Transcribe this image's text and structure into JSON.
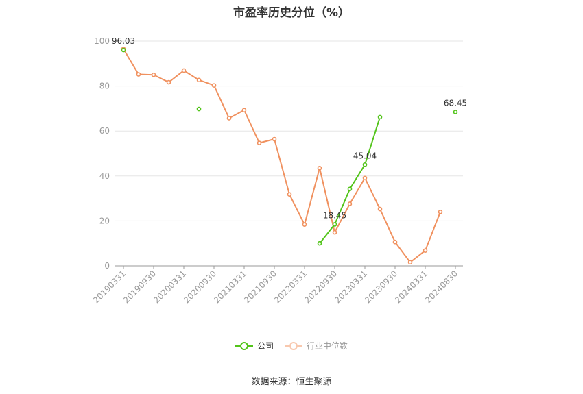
{
  "title": "市盈率历史分位（%）",
  "source": "数据来源：恒生聚源",
  "chart_data": {
    "type": "line",
    "x": [
      "20190331",
      "20190630",
      "20190930",
      "20191231",
      "20200331",
      "20200630",
      "20200930",
      "20201231",
      "20210331",
      "20210630",
      "20210930",
      "20211231",
      "20220331",
      "20220630",
      "20220930",
      "20221231",
      "20230331",
      "20230630",
      "20230930",
      "20231231",
      "20240331",
      "20240630",
      "20240830"
    ],
    "x_tick_labels": [
      "20190331",
      "20190930",
      "20200331",
      "20200930",
      "20210331",
      "20210930",
      "20220331",
      "20220930",
      "20230331",
      "20230930",
      "20240331",
      "20240830"
    ],
    "ylim": [
      0,
      100
    ],
    "y_ticks": [
      0,
      20,
      40,
      60,
      80,
      100
    ],
    "grid": true,
    "legend_position": "bottom",
    "series": [
      {
        "name": "公司",
        "color": "#52c41a",
        "values": [
          96.03,
          null,
          null,
          null,
          null,
          69.8,
          null,
          null,
          null,
          null,
          null,
          null,
          null,
          10,
          18.45,
          34.2,
          45.04,
          66.2,
          null,
          null,
          null,
          null,
          68.45
        ]
      },
      {
        "name": "行业中位数",
        "color": "#f0915f",
        "values": [
          96.5,
          85.2,
          85.0,
          81.7,
          86.9,
          82.7,
          80.3,
          65.7,
          69.3,
          54.7,
          56.4,
          31.8,
          18.4,
          43.5,
          14.9,
          27.6,
          39.1,
          25.3,
          10.6,
          1.6,
          6.8,
          24.0,
          null
        ]
      }
    ],
    "annotations": [
      {
        "series": 0,
        "index": 0,
        "text": "96.03"
      },
      {
        "series": 0,
        "index": 14,
        "text": "18.45"
      },
      {
        "series": 0,
        "index": 16,
        "text": "45.04"
      },
      {
        "series": 0,
        "index": 22,
        "text": "68.45"
      }
    ]
  }
}
